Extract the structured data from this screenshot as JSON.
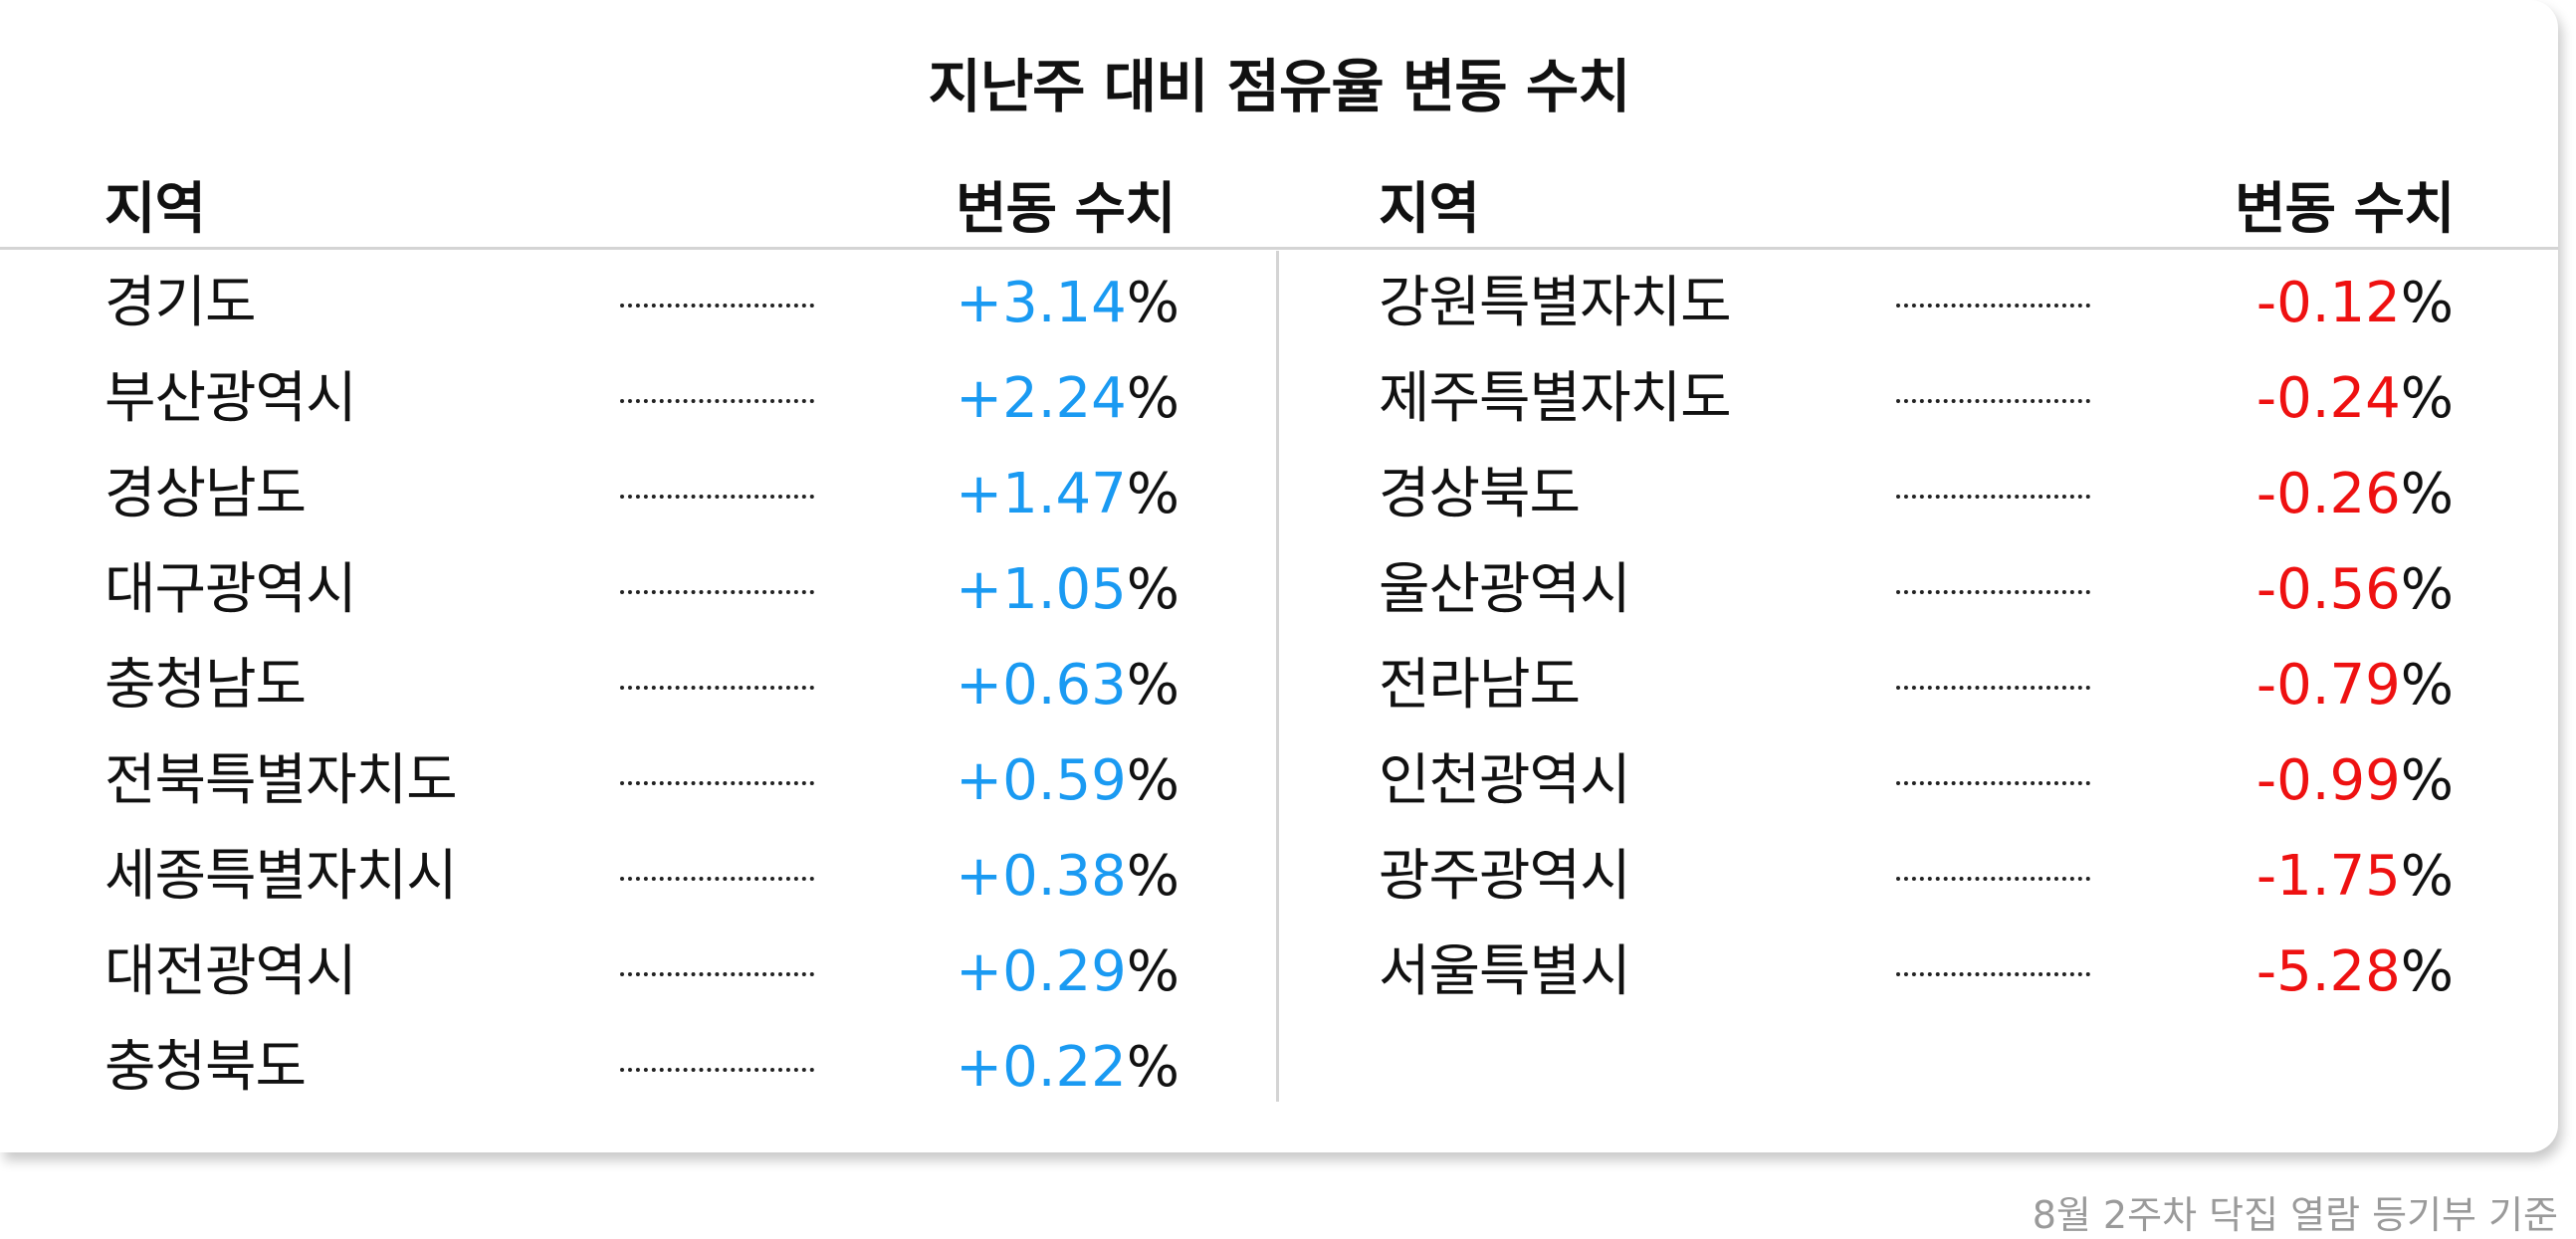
{
  "title": "지난주 대비 점유율 변동 수치",
  "headers": {
    "region": "지역",
    "change": "변동 수치"
  },
  "colors": {
    "positive": "#1a9af2",
    "negative": "#ee1111"
  },
  "left": [
    {
      "region": "경기도",
      "value": "+3.14",
      "unit": "%"
    },
    {
      "region": "부산광역시",
      "value": "+2.24",
      "unit": "%"
    },
    {
      "region": "경상남도",
      "value": "+1.47",
      "unit": "%"
    },
    {
      "region": "대구광역시",
      "value": "+1.05",
      "unit": "%"
    },
    {
      "region": "충청남도",
      "value": "+0.63",
      "unit": "%"
    },
    {
      "region": "전북특별자치도",
      "value": "+0.59",
      "unit": "%"
    },
    {
      "region": "세종특별자치시",
      "value": "+0.38",
      "unit": "%"
    },
    {
      "region": "대전광역시",
      "value": "+0.29",
      "unit": "%"
    },
    {
      "region": "충청북도",
      "value": "+0.22",
      "unit": "%"
    }
  ],
  "right": [
    {
      "region": "강원특별자치도",
      "value": "-0.12",
      "unit": "%"
    },
    {
      "region": "제주특별자치도",
      "value": "-0.24",
      "unit": "%"
    },
    {
      "region": "경상북도",
      "value": "-0.26",
      "unit": "%"
    },
    {
      "region": "울산광역시",
      "value": "-0.56",
      "unit": "%"
    },
    {
      "region": "전라남도",
      "value": "-0.79",
      "unit": "%"
    },
    {
      "region": "인천광역시",
      "value": "-0.99",
      "unit": "%"
    },
    {
      "region": "광주광역시",
      "value": "-1.75",
      "unit": "%"
    },
    {
      "region": "서울특별시",
      "value": "-5.28",
      "unit": "%"
    }
  ],
  "footer": "8월 2주차 닥집 열람 등기부 기준"
}
